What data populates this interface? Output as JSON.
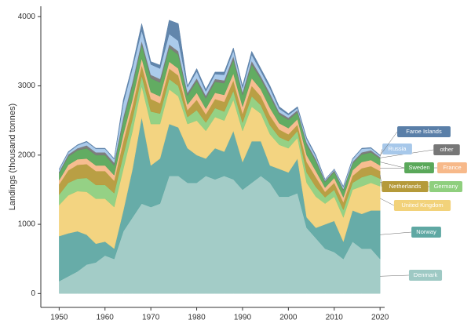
{
  "chart_data": {
    "type": "stacked_area",
    "y_label": "Landings (thousand tonnes)",
    "x": [
      1950,
      1952,
      1954,
      1956,
      1958,
      1960,
      1962,
      1964,
      1966,
      1968,
      1970,
      1972,
      1974,
      1976,
      1978,
      1980,
      1982,
      1984,
      1986,
      1988,
      1990,
      1992,
      1994,
      1996,
      1998,
      2000,
      2002,
      2004,
      2006,
      2008,
      2010,
      2012,
      2014,
      2016,
      2018,
      2020
    ],
    "xlim": [
      1946,
      2021
    ],
    "xticks": [
      1950,
      1960,
      1970,
      1980,
      1990,
      2000,
      2010,
      2020
    ],
    "ylim": [
      -200,
      4150
    ],
    "yticks": [
      0,
      1000,
      2000,
      3000,
      4000
    ],
    "series": [
      {
        "name": "Denmark",
        "color": "#9ec9c4",
        "values": [
          180,
          250,
          320,
          420,
          450,
          550,
          500,
          900,
          1100,
          1300,
          1250,
          1300,
          1700,
          1700,
          1600,
          1600,
          1700,
          1650,
          1700,
          1650,
          1500,
          1600,
          1700,
          1600,
          1400,
          1400,
          1450,
          950,
          800,
          650,
          600,
          500,
          750,
          650,
          650,
          500
        ]
      },
      {
        "name": "Norway",
        "color": "#5fa8a3",
        "values": [
          650,
          620,
          580,
          430,
          270,
          200,
          150,
          300,
          700,
          1250,
          600,
          650,
          750,
          700,
          500,
          400,
          250,
          450,
          350,
          700,
          400,
          600,
          500,
          250,
          400,
          350,
          500,
          150,
          150,
          350,
          450,
          250,
          450,
          500,
          550,
          700
        ]
      },
      {
        "name": "United Kingdom",
        "color": "#f2d27a",
        "values": [
          450,
          550,
          580,
          620,
          650,
          620,
          600,
          600,
          550,
          450,
          600,
          500,
          500,
          450,
          350,
          500,
          400,
          450,
          450,
          450,
          450,
          500,
          400,
          450,
          350,
          350,
          300,
          500,
          450,
          300,
          350,
          350,
          300,
          400,
          400,
          350
        ]
      },
      {
        "name": "Germany",
        "color": "#8fcf7e",
        "values": [
          150,
          180,
          180,
          200,
          200,
          200,
          200,
          200,
          180,
          150,
          180,
          150,
          150,
          150,
          100,
          150,
          120,
          130,
          130,
          130,
          120,
          150,
          120,
          130,
          110,
          100,
          100,
          150,
          140,
          90,
          100,
          110,
          100,
          130,
          120,
          110
        ]
      },
      {
        "name": "Netherlands",
        "color": "#b59a3a",
        "values": [
          150,
          180,
          200,
          200,
          200,
          200,
          180,
          200,
          180,
          150,
          180,
          150,
          150,
          150,
          100,
          150,
          120,
          130,
          140,
          150,
          130,
          150,
          130,
          140,
          110,
          100,
          90,
          150,
          140,
          80,
          100,
          110,
          100,
          130,
          120,
          110
        ]
      },
      {
        "name": "France",
        "color": "#f7b98a",
        "values": [
          60,
          80,
          80,
          80,
          80,
          80,
          80,
          100,
          100,
          100,
          100,
          100,
          100,
          100,
          80,
          100,
          80,
          90,
          100,
          100,
          100,
          110,
          100,
          110,
          90,
          90,
          80,
          100,
          90,
          60,
          70,
          70,
          80,
          90,
          90,
          80
        ]
      },
      {
        "name": "Sweden",
        "color": "#5aa85a",
        "values": [
          100,
          120,
          130,
          150,
          150,
          150,
          140,
          200,
          200,
          200,
          200,
          200,
          200,
          200,
          130,
          170,
          150,
          160,
          170,
          200,
          170,
          200,
          150,
          170,
          130,
          120,
          100,
          150,
          140,
          80,
          90,
          100,
          100,
          110,
          110,
          100
        ]
      },
      {
        "name": "other",
        "color": "#777777",
        "values": [
          20,
          30,
          30,
          40,
          40,
          40,
          40,
          50,
          50,
          50,
          50,
          50,
          50,
          50,
          40,
          40,
          40,
          40,
          40,
          50,
          40,
          50,
          40,
          40,
          30,
          30,
          30,
          30,
          30,
          20,
          20,
          20,
          20,
          30,
          30,
          20
        ]
      },
      {
        "name": "Russia",
        "color": "#a7c8ea",
        "values": [
          30,
          30,
          40,
          50,
          50,
          50,
          50,
          200,
          200,
          150,
          150,
          150,
          150,
          150,
          80,
          100,
          60,
          70,
          80,
          80,
          60,
          90,
          70,
          70,
          50,
          40,
          30,
          50,
          40,
          15,
          15,
          30,
          40,
          50,
          30,
          20
        ]
      },
      {
        "name": "Faroe Islands",
        "color": "#5a7fa8",
        "values": [
          10,
          10,
          10,
          10,
          10,
          10,
          10,
          50,
          40,
          100,
          40,
          50,
          200,
          250,
          20,
          40,
          30,
          30,
          40,
          40,
          30,
          50,
          40,
          40,
          30,
          20,
          20,
          20,
          20,
          5,
          5,
          10,
          10,
          10,
          10,
          10
        ]
      }
    ]
  }
}
